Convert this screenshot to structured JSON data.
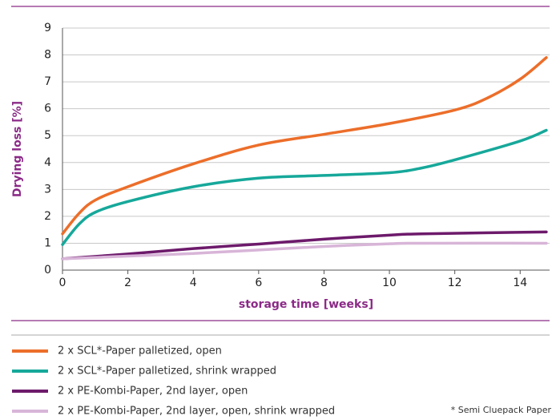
{
  "chart_data": {
    "type": "line",
    "y_label": "Drying loss [%]",
    "x_label": "storage time [weeks]",
    "footnote": "* Semi Cluepack Paper",
    "xlim": [
      0,
      14.9
    ],
    "ylim": [
      0,
      9
    ],
    "xticks": [
      0,
      2,
      4,
      6,
      8,
      10,
      12,
      14
    ],
    "yticks": [
      0,
      1,
      2,
      3,
      4,
      5,
      6,
      7,
      8,
      9
    ],
    "grid": true,
    "series": [
      {
        "name": "2 x SCL*-Paper palletized, open",
        "color": "#ec6e2a",
        "x": [
          0,
          0.5,
          1,
          2,
          4,
          6,
          8,
          10,
          12,
          13,
          14,
          14.8
        ],
        "values": [
          1.35,
          2.1,
          2.6,
          3.1,
          3.95,
          4.65,
          5.05,
          5.45,
          5.95,
          6.4,
          7.1,
          7.9
        ]
      },
      {
        "name": "2 x SCL*-Paper palletized, shrink wrapped",
        "color": "#16a89a",
        "x": [
          0,
          0.5,
          1,
          2,
          4,
          6,
          8,
          10,
          11,
          12,
          14,
          14.8
        ],
        "values": [
          0.95,
          1.7,
          2.15,
          2.55,
          3.1,
          3.42,
          3.52,
          3.62,
          3.8,
          4.1,
          4.8,
          5.2
        ]
      },
      {
        "name": "2 x PE-Kombi-Paper, 2nd layer, open",
        "color": "#6d1a6b",
        "x": [
          0,
          2,
          4,
          6,
          8,
          10,
          11,
          14.8
        ],
        "values": [
          0.42,
          0.6,
          0.8,
          0.97,
          1.15,
          1.3,
          1.35,
          1.42
        ]
      },
      {
        "name": "2 x PE-Kombi-Paper, 2nd layer, open, shrink wrapped",
        "color": "#d8b5d8",
        "x": [
          0,
          2,
          4,
          6,
          8,
          10,
          11,
          14.8
        ],
        "values": [
          0.42,
          0.52,
          0.62,
          0.75,
          0.88,
          0.98,
          1.0,
          1.0
        ]
      }
    ]
  }
}
